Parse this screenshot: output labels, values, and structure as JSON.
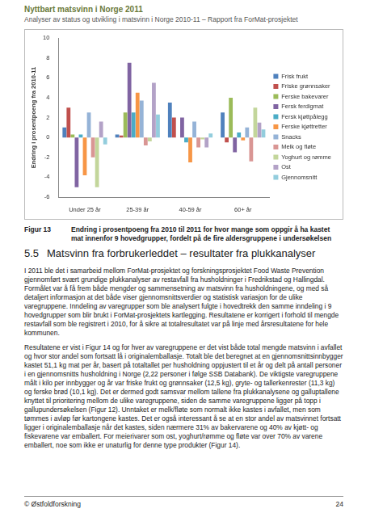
{
  "header": {
    "title": "Nyttbart matsvinn i Norge 2011",
    "subtitle": "Analyser av status og utvikling i matsvinn i Norge 2010-11 – Rapport fra ForMat-prosjektet"
  },
  "chart_data": {
    "type": "bar",
    "y_label": "Endring i prosentpoeng fra 2010-11",
    "categories": [
      "Under 25 år",
      "25-39 år",
      "40-59 år",
      "60+ år"
    ],
    "series": [
      {
        "name": "Frisk frukt",
        "color": "#4f81bd",
        "values": [
          1,
          0.3,
          3.5,
          2.5
        ]
      },
      {
        "name": "Friske grønnsaker",
        "color": "#c0504d",
        "values": [
          3,
          0.2,
          2,
          -0.5
        ]
      },
      {
        "name": "Ferske bakevarer",
        "color": "#9bbb59",
        "values": [
          0.3,
          2.5,
          0,
          4
        ]
      },
      {
        "name": "Fersk ferdigmat",
        "color": "#8064a2",
        "values": [
          -5,
          7.5,
          2,
          -1.5
        ]
      },
      {
        "name": "Fersk kjøttpålegg",
        "color": "#4bacc6",
        "values": [
          0.3,
          2.5,
          -0.5,
          0.5
        ]
      },
      {
        "name": "Ferske kjøttretter",
        "color": "#f79646",
        "values": [
          -3.8,
          4.5,
          -2.5,
          -0.3
        ]
      },
      {
        "name": "Snacks",
        "color": "#95b3d7",
        "values": [
          2.5,
          3.7,
          1.6,
          1
        ]
      },
      {
        "name": "Melk og fløte",
        "color": "#d99694",
        "values": [
          -2,
          -0.8,
          -1,
          -2.4
        ]
      },
      {
        "name": "Yoghurt og rømme",
        "color": "#c3d69b",
        "values": [
          -5,
          -0.4,
          -0.2,
          3
        ]
      },
      {
        "name": "Ost",
        "color": "#b3a2c7",
        "values": [
          1.6,
          5.5,
          -1,
          1.5
        ]
      },
      {
        "name": "Gjennomsnitt",
        "color": "#93cddd",
        "values": [
          -0.7,
          2.3,
          0.4,
          0.8
        ]
      }
    ],
    "ylim": [
      -6,
      10
    ],
    "yticks": [
      -6,
      -4,
      -2,
      0,
      2,
      4,
      6,
      8,
      10
    ],
    "grid": false,
    "legend": "right"
  },
  "caption": {
    "label": "Figur 13",
    "text": "Endring i prosentpoeng fra 2010 til 2011 for hvor mange som oppgir å ha kastet mat innenfor 9 hovedgrupper, fordelt på de fire aldersgruppene i undersøkelsen"
  },
  "section": {
    "number": "5.5",
    "title": "Matsvinn fra forbrukerleddet – resultater fra plukkanalyser"
  },
  "paragraphs": [
    "I 2011 ble det i samarbeid mellom ForMat-prosjektet og forskningsprosjektet Food Waste Prevention gjennomført svært grundige plukkanalyser av restavfall fra husholdninger i Fredrikstad og Hallingdal. Formålet var å få frem både mengder og sammensetning av matsvinn fra husholdningene, og med så detaljert informasjon at det både viser gjennomsnittsverdier og statistisk variasjon for de ulike varegruppene. Inndeling av varegrupper som ble analysert fulgte i hovedtrekk den samme inndeling i 9 hovedgrupper som blir brukt i ForMat-prosjektets kartlegging. Resultatene er korrigert i forhold til mengde restavfall som ble registrert i 2010, for å sikre at totalresultatet var på linje med årsresultatene for hele kommunen.",
    "Resultatene er vist i Figur 14 og for hver av varegruppene er det vist både total mengde matsvinn i avfallet og hvor stor andel som fortsatt lå i originalemballasje. Totalt ble det beregnet at en gjennomsnittsinnbygger kastet 51,1 kg mat per år, basert på totaltallet per husholdning oppjustert til et år og delt på antall personer i en gjennomsnitts husholdning i Norge (2,22 personer i følge SSB Databank). De viktigste varegruppene målt i kilo per innbygger og år var friske frukt og grønnsaker (12,5 kg), gryte- og tallerkenrester (11,3 kg) og ferske brød (10,1 kg). Det er dermed godt samsvar mellom tallene fra plukkanalysene og galluptallene knyttet til prioritering mellom de ulike varegruppene, siden de samme varegruppene ligger på topp i gallupundersøkelsen (Figur 12). Unntaket er melk/fløte som normalt ikke kastes i avfallet, men som tømmes i avløp før kartongene kastes. Det er også interessant å se at en stor andel av matsvinnet fortsatt ligger i originalemballasje når det kastes, siden nærmere 31% av bakervarene og 40% av kjøtt- og fiskevarene var emballert. For meierivarer som ost, yoghurt/rømme og fløte var over 70% av varene emballert, noe som ikke er unaturlig for denne type produkter (Figur 14)."
  ],
  "footer": {
    "copyright": "© Østfoldforskning",
    "page": "24"
  }
}
